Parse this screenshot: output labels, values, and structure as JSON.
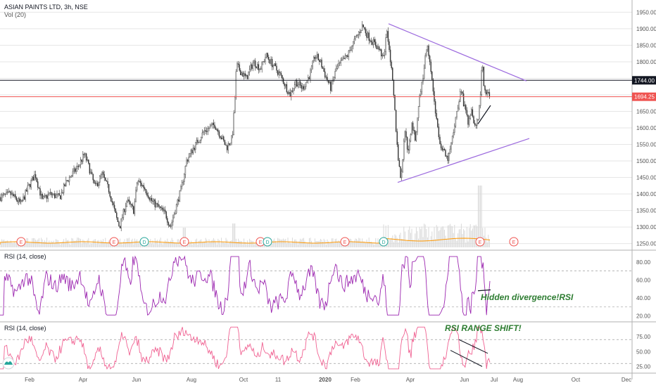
{
  "chart_data": [
    {
      "type": "candlestick",
      "title": "ASIAN PAINTS LTD, 3h, NSE",
      "subtitle": "Vol (20)",
      "ylim": [
        1230,
        1970
      ],
      "y_ticks": [
        1250,
        1300,
        1350,
        1400,
        1450,
        1500,
        1550,
        1600,
        1650,
        1700,
        1750,
        1800,
        1850,
        1900,
        1950
      ],
      "x_ticks": [
        "Feb",
        "Apr",
        "Jun",
        "Aug",
        "Oct",
        "11",
        "2020",
        "Feb",
        "Apr",
        "Jun",
        "Jul",
        "Aug",
        "Oct",
        "Dec"
      ],
      "price_labels": [
        {
          "value": 1744.0,
          "label": "1744.00",
          "color": "#131722"
        },
        {
          "value": 1694.25,
          "label": "1694.25",
          "color": "#ef5350"
        }
      ],
      "price_path": [
        [
          0,
          1390
        ],
        [
          15,
          1400
        ],
        [
          30,
          1370
        ],
        [
          40,
          1420
        ],
        [
          50,
          1460
        ],
        [
          60,
          1380
        ],
        [
          70,
          1400
        ],
        [
          85,
          1390
        ],
        [
          95,
          1440
        ],
        [
          110,
          1480
        ],
        [
          120,
          1520
        ],
        [
          125,
          1490
        ],
        [
          135,
          1420
        ],
        [
          145,
          1460
        ],
        [
          155,
          1410
        ],
        [
          165,
          1330
        ],
        [
          170,
          1300
        ],
        [
          180,
          1380
        ],
        [
          190,
          1350
        ],
        [
          195,
          1440
        ],
        [
          205,
          1420
        ],
        [
          215,
          1380
        ],
        [
          225,
          1360
        ],
        [
          235,
          1340
        ],
        [
          242,
          1300
        ],
        [
          250,
          1360
        ],
        [
          258,
          1420
        ],
        [
          265,
          1500
        ],
        [
          275,
          1540
        ],
        [
          290,
          1590
        ],
        [
          305,
          1610
        ],
        [
          315,
          1570
        ],
        [
          322,
          1540
        ],
        [
          330,
          1570
        ],
        [
          333,
          1660
        ],
        [
          336,
          1790
        ],
        [
          342,
          1770
        ],
        [
          350,
          1750
        ],
        [
          360,
          1800
        ],
        [
          370,
          1780
        ],
        [
          378,
          1820
        ],
        [
          388,
          1790
        ],
        [
          398,
          1760
        ],
        [
          405,
          1730
        ],
        [
          412,
          1700
        ],
        [
          420,
          1740
        ],
        [
          430,
          1720
        ],
        [
          440,
          1760
        ],
        [
          448,
          1820
        ],
        [
          455,
          1800
        ],
        [
          462,
          1760
        ],
        [
          470,
          1720
        ],
        [
          478,
          1780
        ],
        [
          486,
          1800
        ],
        [
          494,
          1820
        ],
        [
          500,
          1850
        ],
        [
          508,
          1880
        ],
        [
          515,
          1910
        ],
        [
          522,
          1880
        ],
        [
          530,
          1860
        ],
        [
          538,
          1840
        ],
        [
          545,
          1810
        ],
        [
          550,
          1900
        ],
        [
          555,
          1800
        ],
        [
          560,
          1680
        ],
        [
          565,
          1520
        ],
        [
          570,
          1440
        ],
        [
          575,
          1600
        ],
        [
          580,
          1520
        ],
        [
          585,
          1620
        ],
        [
          590,
          1560
        ],
        [
          595,
          1680
        ],
        [
          600,
          1740
        ],
        [
          607,
          1860
        ],
        [
          612,
          1780
        ],
        [
          618,
          1660
        ],
        [
          624,
          1560
        ],
        [
          630,
          1530
        ],
        [
          636,
          1500
        ],
        [
          642,
          1560
        ],
        [
          648,
          1640
        ],
        [
          655,
          1720
        ],
        [
          660,
          1660
        ],
        [
          665,
          1620
        ],
        [
          670,
          1660
        ],
        [
          675,
          1600
        ],
        [
          680,
          1640
        ],
        [
          683,
          1700
        ],
        [
          685,
          1810
        ],
        [
          688,
          1720
        ],
        [
          692,
          1700
        ],
        [
          697,
          1700
        ]
      ],
      "trendlines": [
        {
          "from": [
            552,
            1915
          ],
          "to": [
            748,
            1742
          ],
          "color": "#9c6ade"
        },
        {
          "from": [
            565,
            1435
          ],
          "to": [
            752,
            1568
          ],
          "color": "#9c6ade"
        },
        {
          "from": [
            679,
            1612
          ],
          "to": [
            697,
            1668
          ],
          "color": "#131722"
        }
      ],
      "horizontal_lines": [
        {
          "value": 1744,
          "color": "#131722"
        },
        {
          "value": 1694.25,
          "color": "#ef5350"
        }
      ],
      "volume": {
        "baseline_y": 1245,
        "markers": [
          "E",
          "E",
          "D",
          "E",
          "E",
          "D",
          "E",
          "D",
          "E",
          "E"
        ]
      }
    },
    {
      "type": "line",
      "title": "RSI (14, close)",
      "ylim": [
        15,
        90
      ],
      "y_ticks": [
        20,
        40,
        60,
        80
      ],
      "bands": [
        30,
        70
      ],
      "color": "#9c27b0",
      "annotation": "Hidden divergence!RSI"
    },
    {
      "type": "line",
      "title": "RSI (14, close)",
      "ylim": [
        15,
        95
      ],
      "y_ticks": [
        25,
        50,
        75
      ],
      "bands": [
        30,
        70
      ],
      "color": "#f06292",
      "annotation": "RSI RANGE SHIFT!"
    }
  ],
  "markers": {
    "earnings": "E",
    "dividend": "D"
  },
  "colors": {
    "up": "#26a69a",
    "down": "#ef5350",
    "candle": "#333333",
    "grid": "#e6e6e6",
    "axis_text": "#555555"
  }
}
